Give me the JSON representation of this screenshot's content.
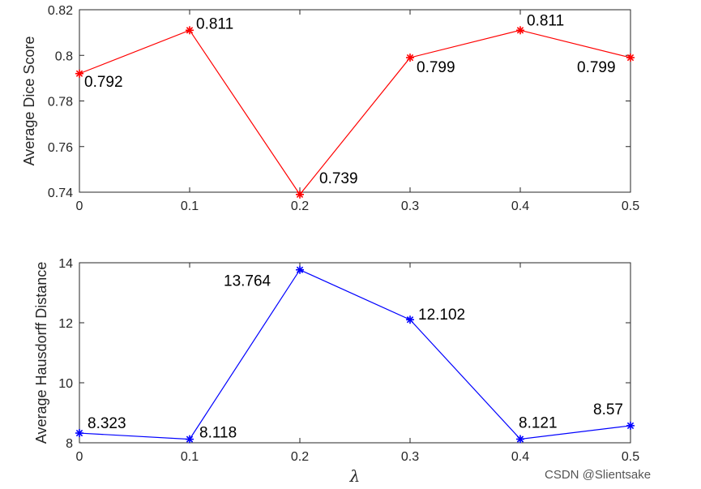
{
  "chart_data": [
    {
      "type": "line",
      "x": [
        0,
        0.1,
        0.2,
        0.3,
        0.4,
        0.5
      ],
      "series": [
        {
          "values": [
            0.792,
            0.811,
            0.739,
            0.799,
            0.811,
            0.799
          ],
          "color": "#ff0000"
        }
      ],
      "data_labels": [
        "0.792",
        "0.811",
        "0.739",
        "0.799",
        "0.811",
        "0.799"
      ],
      "ylabel": "Average Dice Score",
      "xlabel": "",
      "xlim": [
        0,
        0.5
      ],
      "ylim": [
        0.74,
        0.82
      ],
      "xticks": [
        "0",
        "0.1",
        "0.2",
        "0.3",
        "0.4",
        "0.5"
      ],
      "yticks": [
        "0.74",
        "0.76",
        "0.78",
        "0.8",
        "0.82"
      ],
      "marker": "asterisk",
      "grid": false
    },
    {
      "type": "line",
      "x": [
        0,
        0.1,
        0.2,
        0.3,
        0.4,
        0.5
      ],
      "series": [
        {
          "values": [
            8.323,
            8.118,
            13.764,
            12.102,
            8.121,
            8.57
          ],
          "color": "#0000ff"
        }
      ],
      "data_labels": [
        "8.323",
        "8.118",
        "13.764",
        "12.102",
        "8.121",
        "8.57"
      ],
      "ylabel": "Average Hausdorff Distance",
      "xlabel": "λ",
      "xlim": [
        0,
        0.5
      ],
      "ylim": [
        8,
        14
      ],
      "xticks": [
        "0",
        "0.1",
        "0.2",
        "0.3",
        "0.4",
        "0.5"
      ],
      "yticks": [
        "8",
        "10",
        "12",
        "14"
      ],
      "marker": "asterisk",
      "grid": false
    }
  ],
  "watermark": "CSDN @Slientsake"
}
